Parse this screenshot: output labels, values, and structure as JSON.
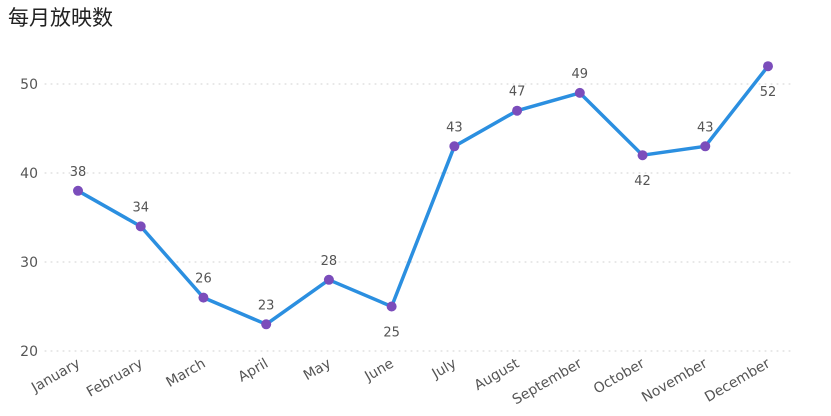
{
  "chart_data": {
    "type": "line",
    "title": "每月放映数",
    "xlabel": "",
    "ylabel": "",
    "categories": [
      "January",
      "February",
      "March",
      "April",
      "May",
      "June",
      "July",
      "August",
      "September",
      "October",
      "November",
      "December"
    ],
    "series": [
      {
        "values": [
          38,
          34,
          26,
          23,
          28,
          25,
          43,
          47,
          49,
          42,
          43,
          52
        ]
      }
    ],
    "label_position": [
      "above",
      "above",
      "above",
      "above",
      "above",
      "below",
      "above",
      "above",
      "above",
      "below",
      "above",
      "below"
    ],
    "ylim": [
      20,
      55
    ],
    "yticks": [
      20,
      30,
      40,
      50
    ],
    "grid": true,
    "legend": "none",
    "colors": {
      "line": "#2b8fe0",
      "marker": "#7b4dbb"
    }
  }
}
